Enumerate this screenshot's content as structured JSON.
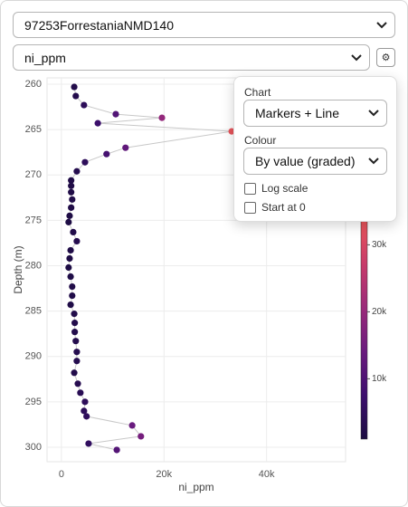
{
  "controls": {
    "dataset": "97253ForrestaniaNMD140",
    "variable": "ni_ppm",
    "gear": "⚙",
    "popup": {
      "chart_label": "Chart",
      "chart_value": "Markers + Line",
      "colour_label": "Colour",
      "colour_value": "By value (graded)",
      "log_scale": "Log scale",
      "start_at_zero": "Start at 0"
    }
  },
  "chart_data": {
    "type": "scatter",
    "mode": "markers+line",
    "x_label": "ni_ppm",
    "y_label": "Depth (m)",
    "y": [
      260.3,
      261.3,
      262.3,
      263.3,
      263.7,
      264.3,
      265.2,
      267.0,
      267.7,
      268.6,
      269.6,
      270.6,
      271.2,
      271.9,
      272.7,
      273.6,
      274.5,
      275.2,
      276.3,
      277.3,
      278.3,
      279.2,
      280.2,
      281.2,
      282.3,
      283.3,
      284.3,
      285.3,
      286.3,
      287.3,
      288.3,
      289.5,
      290.5,
      291.8,
      293.0,
      294.0,
      295.0,
      296.0,
      296.6,
      297.6,
      298.8,
      299.6,
      300.3
    ],
    "values": [
      2500,
      2800,
      4400,
      10600,
      19600,
      7100,
      33200,
      12500,
      8800,
      4600,
      3000,
      1900,
      1900,
      1900,
      2100,
      1900,
      1600,
      1400,
      2300,
      3000,
      1800,
      1600,
      1400,
      1800,
      2100,
      2100,
      1800,
      2500,
      2600,
      2600,
      2800,
      3000,
      3000,
      2500,
      3200,
      3700,
      4600,
      4400,
      4900,
      13800,
      15500,
      5300,
      10800
    ],
    "xlim": [
      -2800,
      55400
    ],
    "ylim": [
      301.6,
      259.3
    ],
    "y_reversed": true,
    "xticks": [
      0,
      {
        "value": 20000,
        "label": "20k"
      },
      {
        "value": 40000,
        "label": "40k"
      }
    ],
    "yticks": [
      260,
      265,
      270,
      275,
      280,
      285,
      290,
      295,
      300
    ],
    "grid": true,
    "line_color": "#c8c8c8",
    "colorscale": [
      "#1b0c41",
      "#3d0f6e",
      "#6a1b7e",
      "#9a2a7a",
      "#c73b6a",
      "#e8555a",
      "#f57a52"
    ],
    "color_range": [
      1000,
      40000
    ],
    "colorbar_ticks": [
      {
        "value": 10000,
        "label": "10k"
      },
      {
        "value": 20000,
        "label": "20k"
      },
      {
        "value": 30000,
        "label": "30k"
      }
    ]
  }
}
